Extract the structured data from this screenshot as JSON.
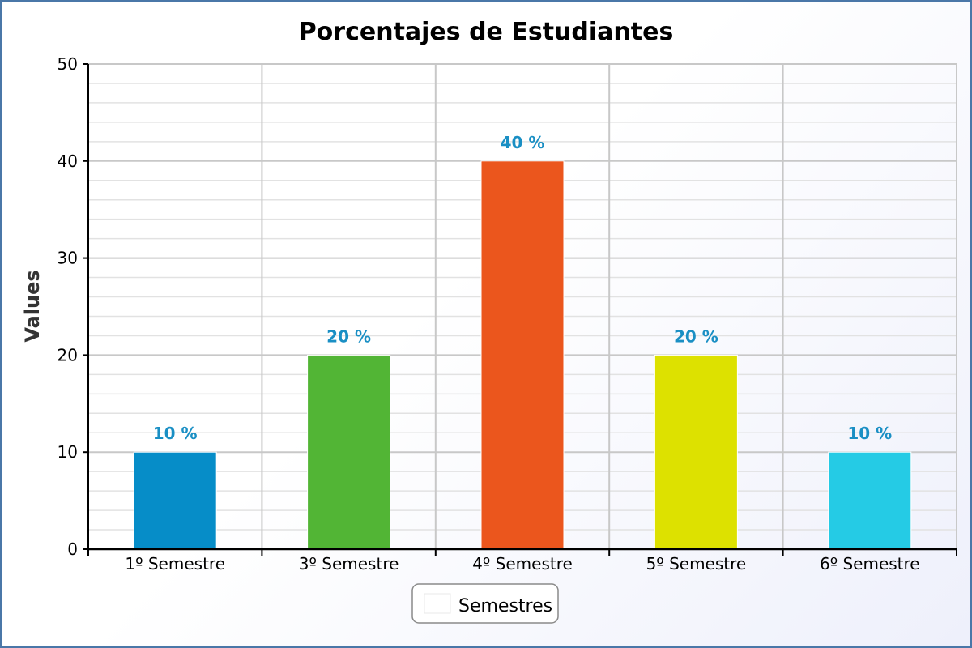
{
  "chart_data": {
    "type": "bar",
    "title": "Porcentajes de Estudiantes",
    "xlabel": "",
    "ylabel": "Values",
    "ylim": [
      0,
      50
    ],
    "yticks": [
      0,
      10,
      20,
      30,
      40,
      50
    ],
    "categories": [
      "1º Semestre",
      "3º Semestre",
      "4º Semestre",
      "5º Semestre",
      "6º Semestre"
    ],
    "series": [
      {
        "name": "Semestres",
        "values": [
          10,
          20,
          40,
          20,
          10
        ],
        "data_labels": [
          "10 %",
          "20 %",
          "40 %",
          "20 %",
          "10 %"
        ],
        "colors": [
          "#068dc8",
          "#52b535",
          "#eb561d",
          "#dde100",
          "#25cbe5"
        ]
      }
    ],
    "grid": true,
    "legend_position": "bottom"
  },
  "colors": {
    "frame_border": "#4a77a8",
    "grid_major": "#c8c8c8",
    "grid_minor": "#e2e2e2",
    "data_label": "#1a8fc4",
    "axis": "#000000"
  }
}
